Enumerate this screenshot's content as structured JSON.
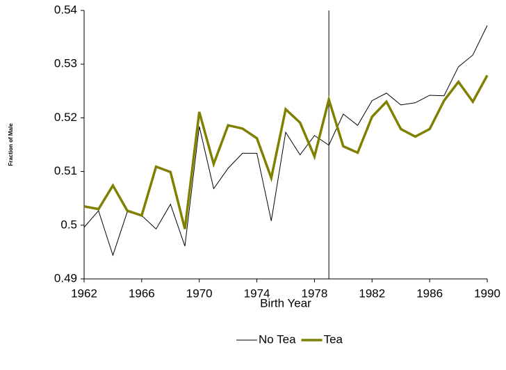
{
  "chart_data": {
    "type": "line",
    "x_label": "Birth Year",
    "y_label": "Fraction of Male",
    "x": [
      1962,
      1963,
      1964,
      1965,
      1966,
      1967,
      1968,
      1969,
      1970,
      1971,
      1972,
      1973,
      1974,
      1975,
      1976,
      1977,
      1978,
      1979,
      1980,
      1981,
      1982,
      1983,
      1984,
      1985,
      1986,
      1987,
      1988,
      1989,
      1990
    ],
    "series": [
      {
        "name": "No Tea",
        "color": "#000000",
        "width": 1,
        "values": [
          0.4996,
          0.5027,
          0.4944,
          0.5025,
          0.5018,
          0.4993,
          0.5039,
          0.4961,
          0.5184,
          0.5068,
          0.5106,
          0.5134,
          0.5134,
          0.5008,
          0.5173,
          0.5131,
          0.5167,
          0.5149,
          0.5207,
          0.5186,
          0.5232,
          0.5246,
          0.5224,
          0.5228,
          0.5242,
          0.5241,
          0.5295,
          0.5317,
          0.5372
        ]
      },
      {
        "name": "Tea",
        "color": "#808000",
        "width": 3.5,
        "values": [
          0.5035,
          0.503,
          0.5074,
          0.5027,
          0.5018,
          0.5109,
          0.5099,
          0.4993,
          0.5211,
          0.5114,
          0.5186,
          0.518,
          0.5162,
          0.5088,
          0.5216,
          0.5191,
          0.5128,
          0.5234,
          0.5147,
          0.5135,
          0.5202,
          0.523,
          0.5179,
          0.5165,
          0.5179,
          0.5232,
          0.5267,
          0.523,
          0.5279
        ]
      }
    ],
    "xlim": [
      1962,
      1990
    ],
    "xticks": [
      1962,
      1966,
      1970,
      1974,
      1978,
      1982,
      1986,
      1990
    ],
    "ylim": [
      0.49,
      0.54
    ],
    "yticks": [
      0.49,
      0.5,
      0.51,
      0.52,
      0.53,
      0.54
    ],
    "vline": 1979,
    "grid": false,
    "legend": "bottom"
  }
}
